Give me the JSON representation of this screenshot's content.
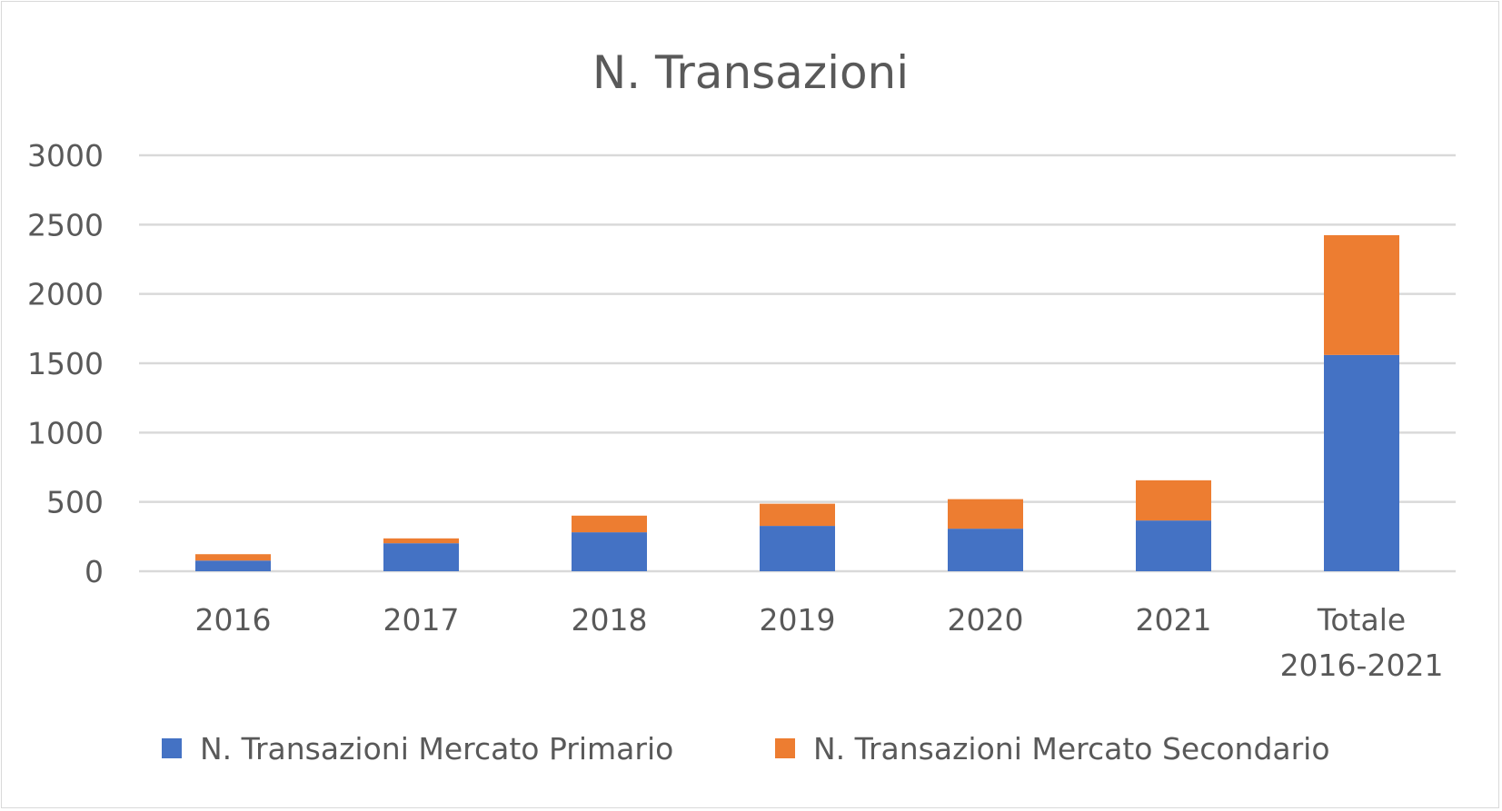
{
  "chart_data": {
    "type": "bar",
    "stacked": true,
    "title": "N. Transazioni",
    "xlabel": "",
    "ylabel": "",
    "categories": [
      "2016",
      "2017",
      "2018",
      "2019",
      "2020",
      "2021",
      "Totale 2016-2021"
    ],
    "category_lines": [
      [
        "2016"
      ],
      [
        "2017"
      ],
      [
        "2018"
      ],
      [
        "2019"
      ],
      [
        "2020"
      ],
      [
        "2021"
      ],
      [
        "Totale",
        "2016-2021"
      ]
    ],
    "series": [
      {
        "name": "N. Transazioni Mercato Primario",
        "color": "#4472c4",
        "values": [
          77,
          202,
          281,
          327,
          307,
          366,
          1560
        ]
      },
      {
        "name": "N. Transazioni Mercato Secondario",
        "color": "#ed7d31",
        "values": [
          46,
          35,
          120,
          160,
          213,
          290,
          864
        ]
      }
    ],
    "ylim": [
      0,
      3000
    ],
    "yticks": [
      0,
      500,
      1000,
      1500,
      2000,
      2500,
      3000
    ],
    "grid": true,
    "legend": "bottom"
  }
}
